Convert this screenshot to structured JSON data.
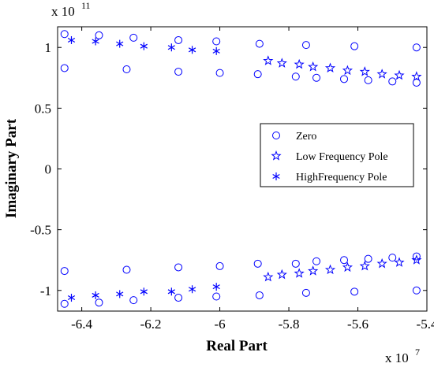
{
  "chart_data": {
    "type": "scatter",
    "title": "",
    "xlabel": "Real Part",
    "ylabel": "Imaginary Part",
    "x_multiplier": {
      "base": "x 10",
      "exponent": "7"
    },
    "y_multiplier": {
      "base": "x 10",
      "exponent": "11"
    },
    "xlim": [
      -6.47,
      -5.4
    ],
    "ylim": [
      -1.17,
      1.17
    ],
    "xticks": [
      -6.4,
      -6.2,
      -6.0,
      -5.8,
      -5.6,
      -5.4
    ],
    "xtick_labels": [
      "-6.4",
      "-6.2",
      "-6",
      "-5.8",
      "-5.6",
      "-5.4"
    ],
    "yticks": [
      1,
      0.5,
      0,
      -0.5,
      -1
    ],
    "ytick_labels": [
      "1",
      "0.5",
      "0",
      "-0.5",
      "-1"
    ],
    "grid": false,
    "legend_position": "center-right",
    "color": "#0000ff",
    "series": [
      {
        "name": "Zero",
        "marker": "circle",
        "points": [
          [
            -6.45,
            1.11
          ],
          [
            -6.45,
            0.83
          ],
          [
            -6.35,
            1.1
          ],
          [
            -6.25,
            1.08
          ],
          [
            -6.27,
            0.82
          ],
          [
            -6.12,
            1.06
          ],
          [
            -6.12,
            0.8
          ],
          [
            -6.01,
            1.05
          ],
          [
            -6.0,
            0.79
          ],
          [
            -5.885,
            1.03
          ],
          [
            -5.89,
            0.78
          ],
          [
            -5.78,
            0.76
          ],
          [
            -5.75,
            1.02
          ],
          [
            -5.72,
            0.75
          ],
          [
            -5.64,
            0.74
          ],
          [
            -5.61,
            1.01
          ],
          [
            -5.57,
            0.73
          ],
          [
            -5.5,
            0.72
          ],
          [
            -5.43,
            1.0
          ],
          [
            -5.43,
            0.71
          ],
          [
            -6.45,
            -1.11
          ],
          [
            -6.45,
            -0.84
          ],
          [
            -6.35,
            -1.1
          ],
          [
            -6.25,
            -1.08
          ],
          [
            -6.27,
            -0.83
          ],
          [
            -6.12,
            -1.06
          ],
          [
            -6.12,
            -0.81
          ],
          [
            -6.01,
            -1.05
          ],
          [
            -6.0,
            -0.8
          ],
          [
            -5.885,
            -1.04
          ],
          [
            -5.89,
            -0.78
          ],
          [
            -5.78,
            -0.78
          ],
          [
            -5.75,
            -1.02
          ],
          [
            -5.72,
            -0.76
          ],
          [
            -5.64,
            -0.75
          ],
          [
            -5.61,
            -1.01
          ],
          [
            -5.57,
            -0.74
          ],
          [
            -5.5,
            -0.73
          ],
          [
            -5.43,
            -1.0
          ],
          [
            -5.43,
            -0.72
          ]
        ]
      },
      {
        "name": "Low Frequency Pole",
        "marker": "pentagram",
        "points": [
          [
            -5.86,
            0.89
          ],
          [
            -5.82,
            0.87
          ],
          [
            -5.77,
            0.86
          ],
          [
            -5.73,
            0.84
          ],
          [
            -5.68,
            0.83
          ],
          [
            -5.63,
            0.81
          ],
          [
            -5.58,
            0.8
          ],
          [
            -5.53,
            0.78
          ],
          [
            -5.48,
            0.77
          ],
          [
            -5.43,
            0.76
          ],
          [
            -5.86,
            -0.89
          ],
          [
            -5.82,
            -0.87
          ],
          [
            -5.77,
            -0.86
          ],
          [
            -5.73,
            -0.84
          ],
          [
            -5.68,
            -0.83
          ],
          [
            -5.63,
            -0.81
          ],
          [
            -5.58,
            -0.8
          ],
          [
            -5.53,
            -0.78
          ],
          [
            -5.48,
            -0.77
          ],
          [
            -5.43,
            -0.75
          ]
        ]
      },
      {
        "name": "HighFrequency Pole",
        "marker": "star6",
        "points": [
          [
            -6.43,
            1.06
          ],
          [
            -6.36,
            1.05
          ],
          [
            -6.29,
            1.03
          ],
          [
            -6.22,
            1.01
          ],
          [
            -6.14,
            1.0
          ],
          [
            -6.08,
            0.98
          ],
          [
            -6.01,
            0.97
          ],
          [
            -6.43,
            -1.06
          ],
          [
            -6.36,
            -1.04
          ],
          [
            -6.29,
            -1.03
          ],
          [
            -6.22,
            -1.01
          ],
          [
            -6.14,
            -1.01
          ],
          [
            -6.08,
            -0.99
          ],
          [
            -6.01,
            -0.97
          ]
        ]
      }
    ]
  }
}
